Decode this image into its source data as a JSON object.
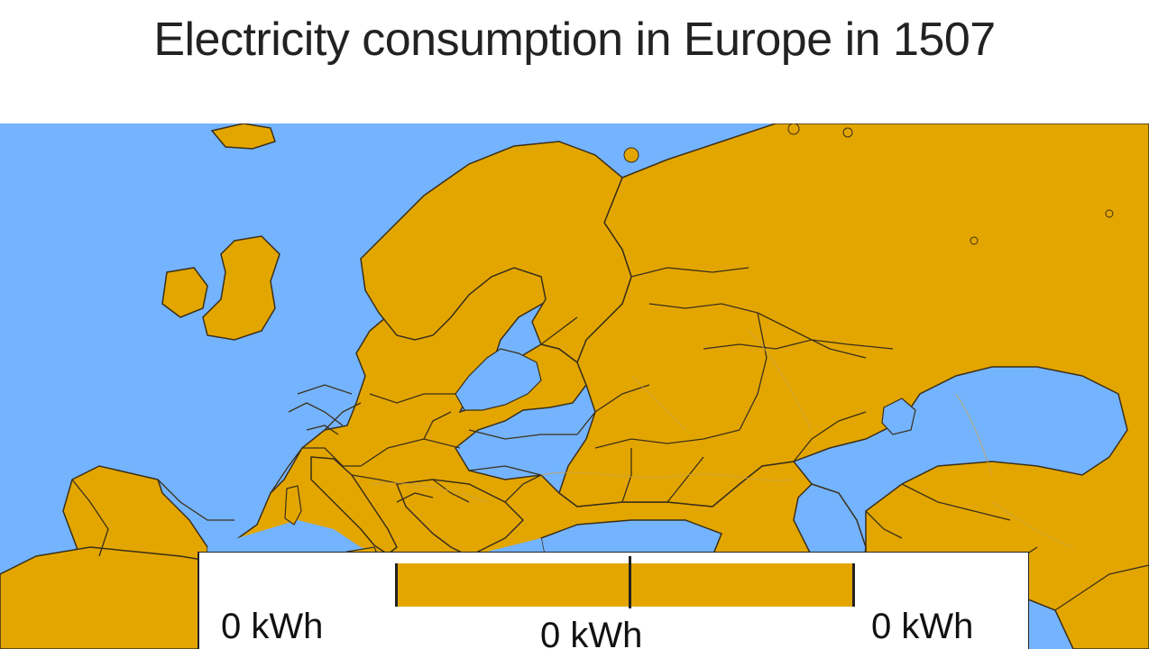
{
  "title": "Electricity consumption in Europe in 1507",
  "colors": {
    "land": "#e3a600",
    "sea": "#74b4ff",
    "border": "#3a2f1a",
    "river": "#c9a24a"
  },
  "legend": {
    "left_label": "0 kWh",
    "middle_label": "0 kWh",
    "right_label": "0 kWh"
  }
}
